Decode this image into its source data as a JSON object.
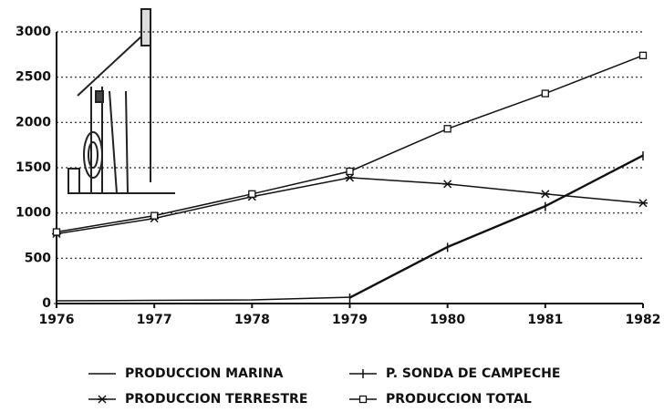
{
  "chart_data": {
    "type": "line",
    "x": [
      1976,
      1977,
      1978,
      1979,
      1980,
      1981,
      1982
    ],
    "xlim": [
      1976,
      1982
    ],
    "xticks": [
      1976,
      1977,
      1978,
      1979,
      1980,
      1981,
      1982
    ],
    "ylim": [
      0,
      3000
    ],
    "yticks": [
      0,
      500,
      1000,
      1500,
      2000,
      2500,
      3000
    ],
    "grid": true,
    "series": [
      {
        "name": "PRODUCCION MARINA",
        "color": "#111111",
        "marker": "none",
        "values": [
          30,
          35,
          40,
          70,
          630,
          1080,
          1640
        ]
      },
      {
        "name": "P. SONDA DE CAMPECHE",
        "color": "#111111",
        "marker": "plus",
        "values": [
          null,
          null,
          null,
          60,
          620,
          1070,
          1630
        ]
      },
      {
        "name": "PRODUCCION TERRESTRE",
        "color": "#111111",
        "marker": "star",
        "values": [
          770,
          940,
          1180,
          1390,
          1320,
          1210,
          1110
        ]
      },
      {
        "name": "PRODUCCION TOTAL",
        "color": "#111111",
        "marker": "square",
        "values": [
          790,
          970,
          1210,
          1460,
          1930,
          2320,
          2740
        ]
      }
    ]
  }
}
